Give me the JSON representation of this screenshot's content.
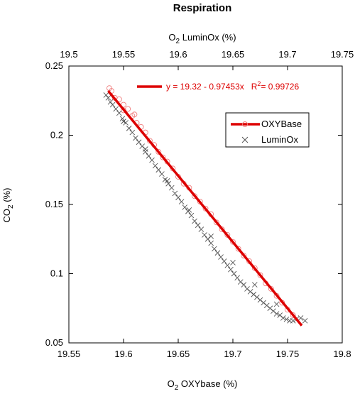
{
  "chart_data": {
    "type": "scatter",
    "title": "Respiration",
    "xlabel_bottom": {
      "pre": "O",
      "sub": "2",
      "post": " OXYbase (%)"
    },
    "xlabel_top": {
      "pre": "O",
      "sub": "2",
      "post": " LuminOx (%)"
    },
    "ylabel": {
      "pre": "CO",
      "sub": "2",
      "post": " (%)"
    },
    "xlim_bottom": [
      19.55,
      19.8
    ],
    "xticks_bottom": [
      "19.55",
      "19.6",
      "19.65",
      "19.7",
      "19.75",
      "19.8"
    ],
    "xlim_top": [
      19.5,
      19.75
    ],
    "xticks_top": [
      "19.5",
      "19.55",
      "19.6",
      "19.65",
      "19.7",
      "19.75"
    ],
    "ylim": [
      0.05,
      0.25
    ],
    "yticks": [
      "0.05",
      "0.1",
      "0.15",
      "0.2",
      "0.25"
    ],
    "grid": false,
    "legend_position": "top-right",
    "equation": {
      "main": "y = 19.32 - 0.97453x   R",
      "sup": "2",
      "tail": "= 0.99726"
    },
    "fit_line": {
      "x": [
        19.586,
        19.763
      ],
      "y": [
        0.232,
        0.0625
      ],
      "color": "#dd0000"
    },
    "series": [
      {
        "name": "OXYBase",
        "marker": "circle",
        "color": "#f08080",
        "x": [
          19.587,
          19.589,
          19.592,
          19.596,
          19.6,
          19.604,
          19.608,
          19.612,
          19.616,
          19.62,
          19.624,
          19.628,
          19.632,
          19.636,
          19.64,
          19.645,
          19.65,
          19.655,
          19.66,
          19.665,
          19.67,
          19.675,
          19.68,
          19.685,
          19.69,
          19.695,
          19.7,
          19.705,
          19.71,
          19.715,
          19.72,
          19.725,
          19.73,
          19.735,
          19.74,
          19.745,
          19.75,
          19.755,
          19.6,
          19.61
        ],
        "y": [
          0.234,
          0.232,
          0.227,
          0.226,
          0.222,
          0.219,
          0.214,
          0.209,
          0.206,
          0.202,
          0.196,
          0.193,
          0.188,
          0.184,
          0.181,
          0.176,
          0.17,
          0.165,
          0.162,
          0.156,
          0.152,
          0.147,
          0.143,
          0.137,
          0.132,
          0.128,
          0.123,
          0.118,
          0.113,
          0.109,
          0.104,
          0.099,
          0.093,
          0.089,
          0.084,
          0.079,
          0.074,
          0.07,
          0.218,
          0.215
        ]
      },
      {
        "name": "LuminOx",
        "marker": "x",
        "color": "#555555",
        "x": [
          19.584,
          19.586,
          19.588,
          19.59,
          19.593,
          19.596,
          19.599,
          19.602,
          19.605,
          19.608,
          19.611,
          19.614,
          19.617,
          19.62,
          19.623,
          19.626,
          19.629,
          19.632,
          19.635,
          19.638,
          19.641,
          19.644,
          19.647,
          19.65,
          19.653,
          19.656,
          19.659,
          19.662,
          19.665,
          19.668,
          19.671,
          19.674,
          19.677,
          19.68,
          19.683,
          19.686,
          19.689,
          19.692,
          19.695,
          19.698,
          19.701,
          19.704,
          19.707,
          19.71,
          19.713,
          19.716,
          19.719,
          19.722,
          19.725,
          19.728,
          19.731,
          19.734,
          19.737,
          19.74,
          19.743,
          19.746,
          19.749,
          19.752,
          19.755,
          19.758,
          19.762,
          19.766,
          19.6,
          19.62,
          19.64,
          19.66,
          19.68,
          19.7,
          19.72,
          19.74
        ],
        "y": [
          0.229,
          0.227,
          0.224,
          0.222,
          0.219,
          0.216,
          0.212,
          0.209,
          0.205,
          0.202,
          0.198,
          0.195,
          0.192,
          0.188,
          0.185,
          0.182,
          0.178,
          0.175,
          0.172,
          0.168,
          0.165,
          0.162,
          0.158,
          0.155,
          0.152,
          0.148,
          0.145,
          0.142,
          0.138,
          0.135,
          0.132,
          0.128,
          0.125,
          0.122,
          0.118,
          0.115,
          0.112,
          0.109,
          0.106,
          0.103,
          0.1,
          0.097,
          0.094,
          0.092,
          0.089,
          0.087,
          0.085,
          0.083,
          0.081,
          0.079,
          0.077,
          0.075,
          0.073,
          0.071,
          0.07,
          0.068,
          0.067,
          0.066,
          0.066,
          0.067,
          0.068,
          0.066,
          0.21,
          0.19,
          0.167,
          0.146,
          0.127,
          0.108,
          0.092,
          0.078
        ]
      }
    ]
  }
}
